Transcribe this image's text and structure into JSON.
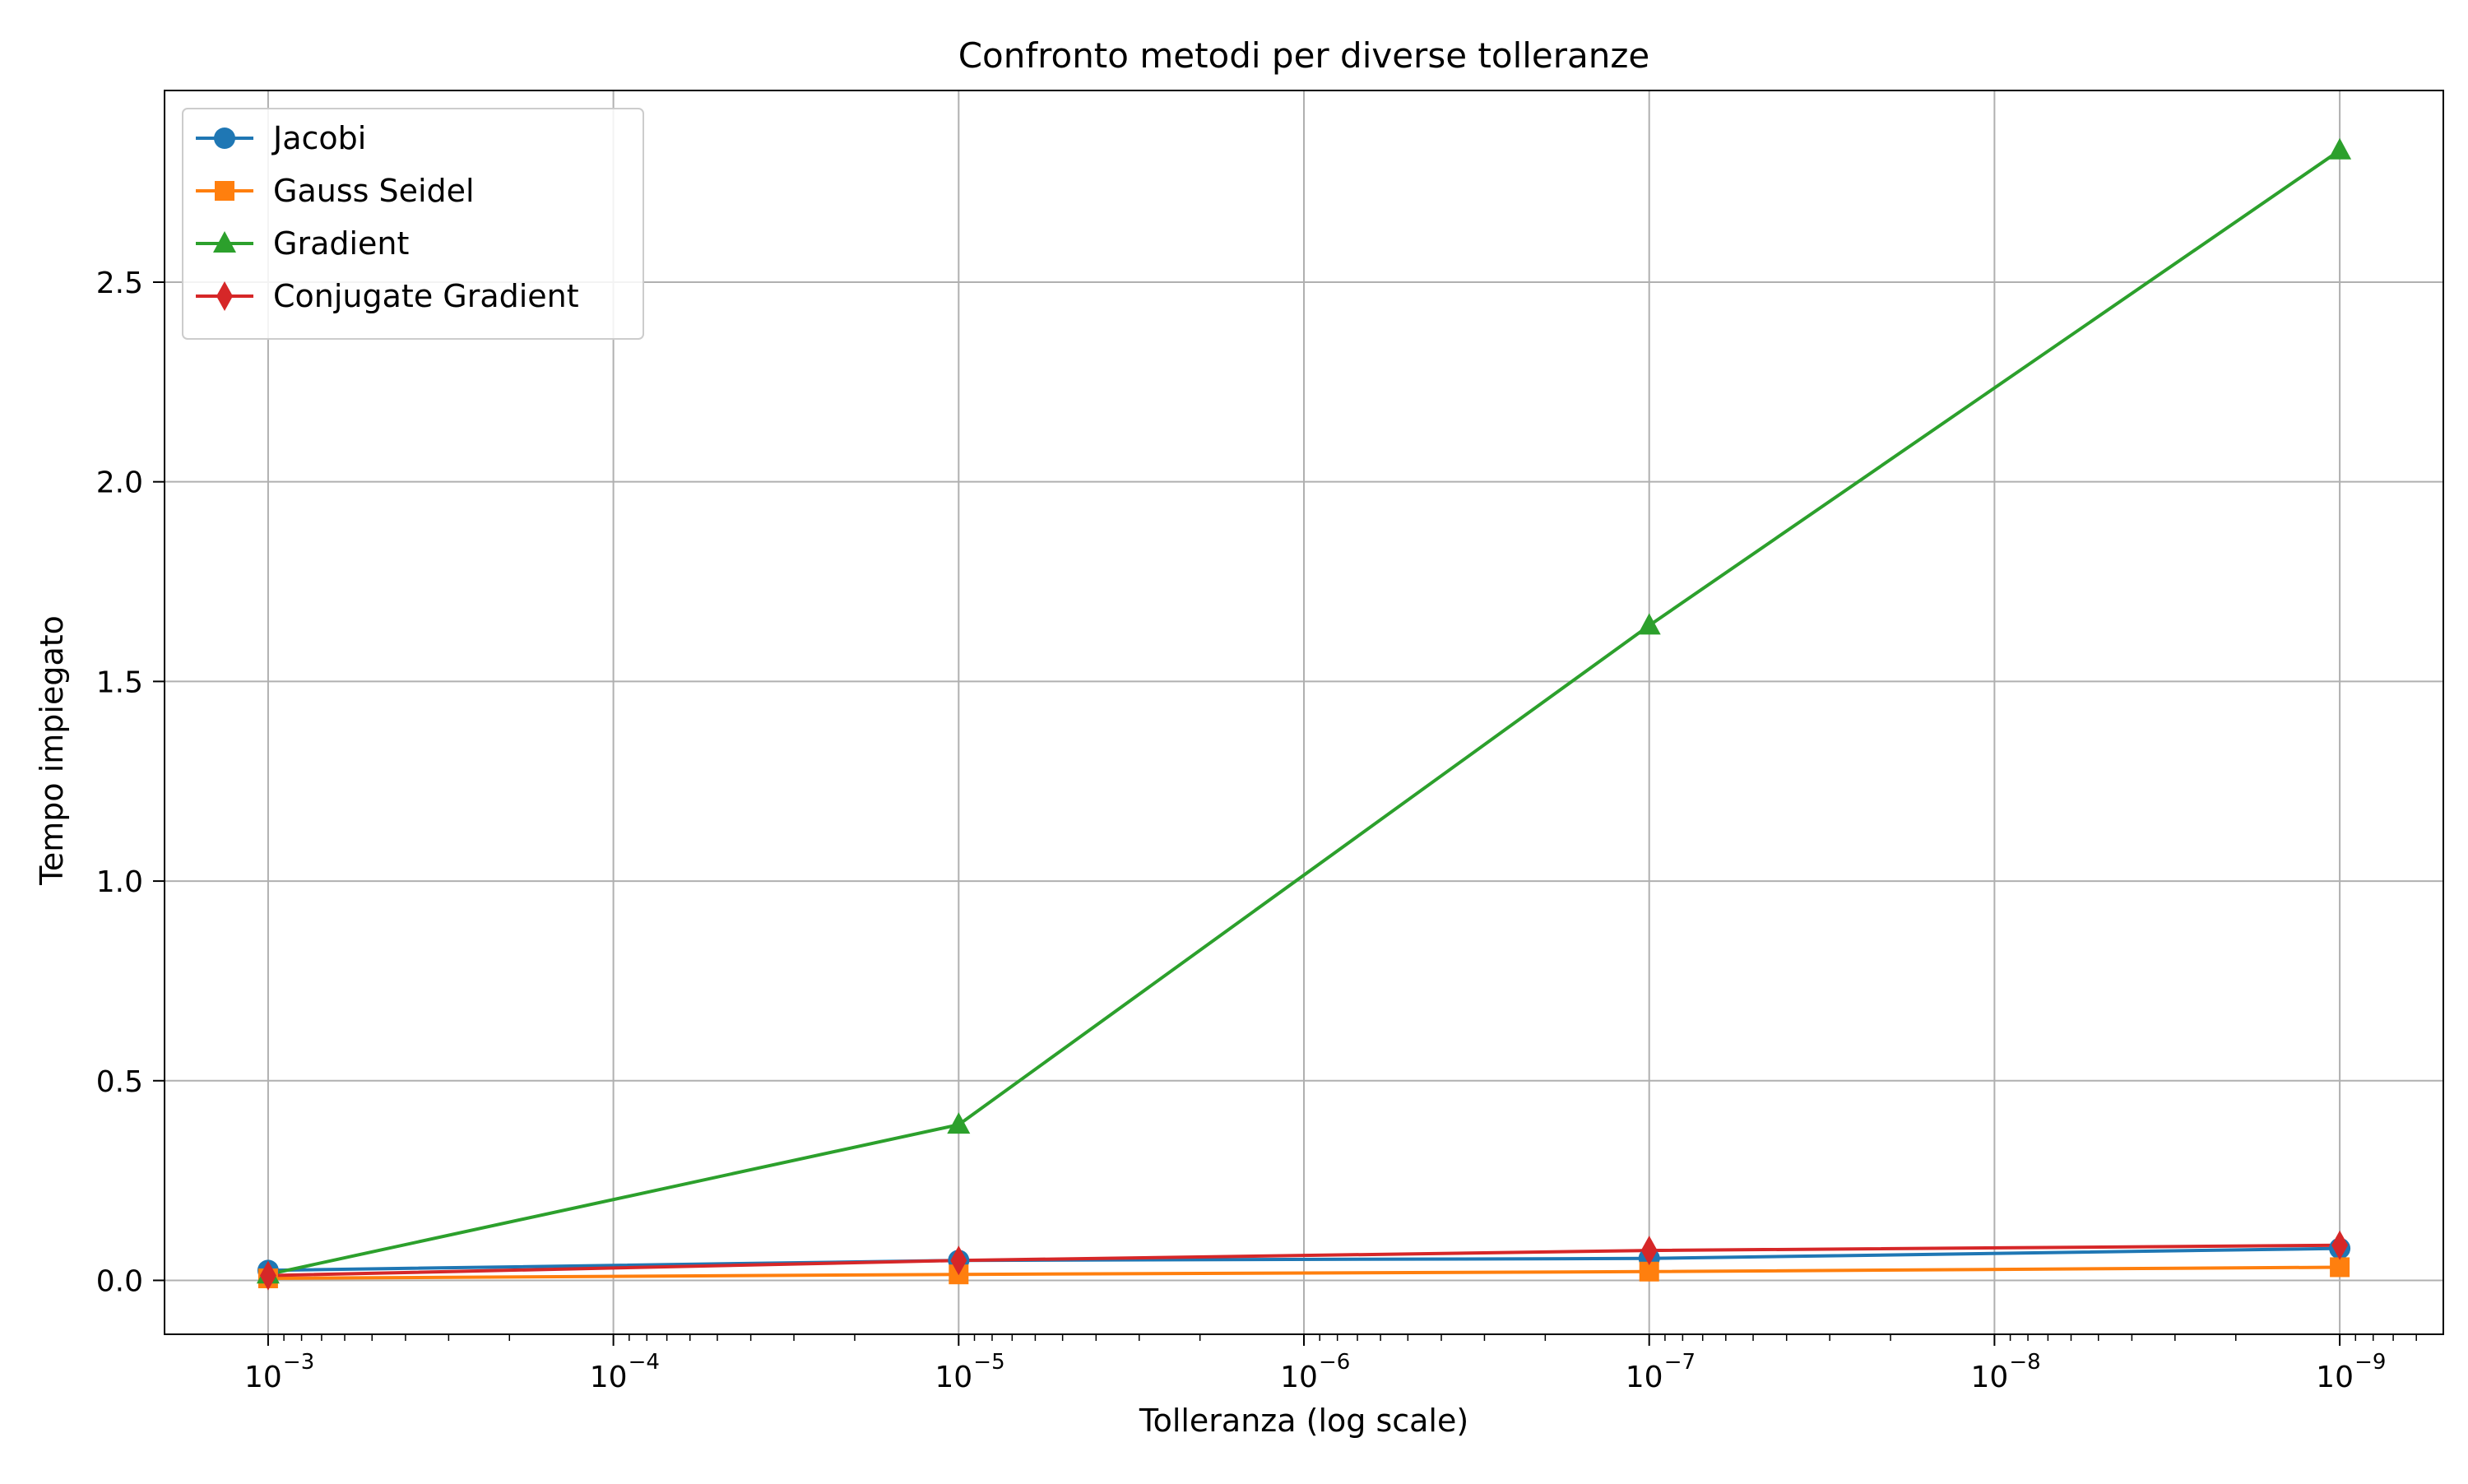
{
  "chart_data": {
    "type": "line",
    "title": "Confronto metodi per diverse tolleranze",
    "xlabel": "Tolleranza (log scale)",
    "ylabel": "Tempo impiegato",
    "x": [
      0.001,
      1e-05,
      1e-07,
      1e-09
    ],
    "x_scale": "log",
    "x_inverted": true,
    "x_ticks": [
      {
        "base": "10",
        "exp": "−3",
        "value": 0.001
      },
      {
        "base": "10",
        "exp": "−4",
        "value": 0.0001
      },
      {
        "base": "10",
        "exp": "−5",
        "value": 1e-05
      },
      {
        "base": "10",
        "exp": "−6",
        "value": 1e-06
      },
      {
        "base": "10",
        "exp": "−7",
        "value": 1e-07
      },
      {
        "base": "10",
        "exp": "−8",
        "value": 1e-08
      },
      {
        "base": "10",
        "exp": "−9",
        "value": 1e-09
      }
    ],
    "y_ticks": [
      "0.0",
      "0.5",
      "1.0",
      "1.5",
      "2.0",
      "2.5"
    ],
    "ylim": [
      -0.135,
      2.98
    ],
    "grid": true,
    "legend_position": "top-left",
    "series": [
      {
        "name": "Jacobi",
        "color": "#1f77b4",
        "marker": "circle",
        "values": [
          0.025,
          0.05,
          0.055,
          0.08
        ]
      },
      {
        "name": "Gauss Seidel",
        "color": "#ff7f0e",
        "marker": "square",
        "values": [
          0.005,
          0.015,
          0.022,
          0.033
        ]
      },
      {
        "name": "Gradient",
        "color": "#2ca02c",
        "marker": "triangle",
        "values": [
          0.015,
          0.39,
          1.64,
          2.83
        ]
      },
      {
        "name": "Conjugate Gradient",
        "color": "#d62728",
        "marker": "diamond",
        "values": [
          0.012,
          0.05,
          0.075,
          0.088
        ]
      }
    ]
  }
}
